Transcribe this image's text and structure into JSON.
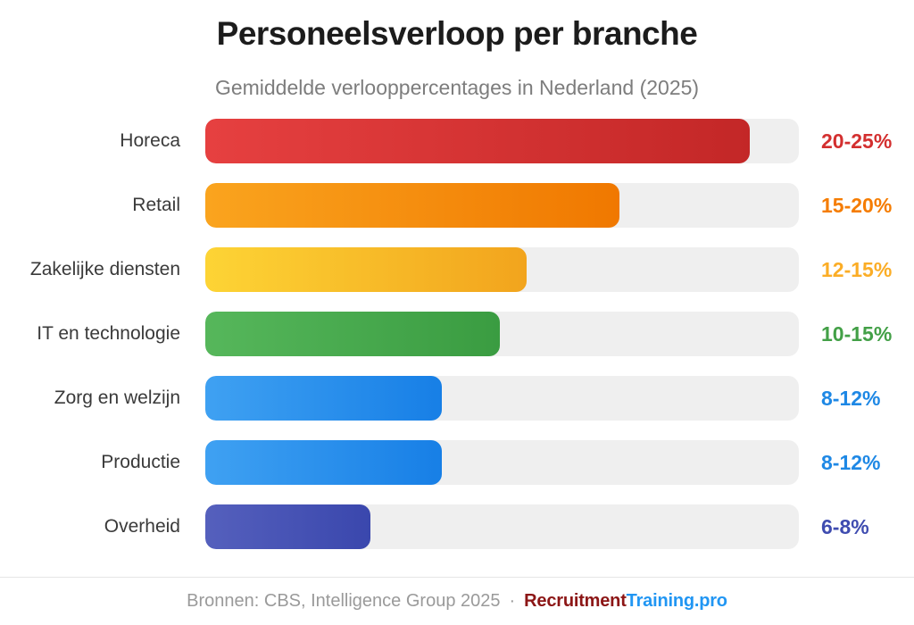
{
  "header": {
    "title": "Personeelsverloop per branche",
    "subtitle": "Gemiddelde verlooppercentages in Nederland (2025)"
  },
  "chart_data": {
    "type": "bar",
    "orientation": "horizontal",
    "title": "Personeelsverloop per branche",
    "subtitle": "Gemiddelde verlooppercentages in Nederland (2025)",
    "grid": false,
    "legend_position": "none",
    "track_color": "#efefef",
    "categories": [
      "Horeca",
      "Retail",
      "Zakelijke diensten",
      "IT en technologie",
      "Zorg en welzijn",
      "Productie",
      "Overheid"
    ],
    "value_labels": [
      "20-25%",
      "15-20%",
      "12-15%",
      "10-15%",
      "8-12%",
      "8-12%",
      "6-8%"
    ],
    "range_low": [
      20,
      15,
      12,
      10,
      8,
      8,
      6
    ],
    "range_high": [
      25,
      20,
      15,
      15,
      12,
      12,
      8
    ],
    "bars": [
      {
        "label": "Horeca",
        "value": "20-25%",
        "width_pct": 91.7,
        "gradient": [
          "#e64040",
          "#c32727"
        ],
        "value_color": "#d32f2f"
      },
      {
        "label": "Retail",
        "value": "15-20%",
        "width_pct": 69.8,
        "gradient": [
          "#faa41e",
          "#f07800"
        ],
        "value_color": "#f57c00"
      },
      {
        "label": "Zakelijke diensten",
        "value": "12-15%",
        "width_pct": 54.1,
        "gradient": [
          "#fdd435",
          "#f2a41d"
        ],
        "value_color": "#fbad26"
      },
      {
        "label": "IT en technologie",
        "value": "10-15%",
        "width_pct": 49.6,
        "gradient": [
          "#56b75b",
          "#3a9c41"
        ],
        "value_color": "#43a047"
      },
      {
        "label": "Zorg en welzijn",
        "value": "8-12%",
        "width_pct": 39.9,
        "gradient": [
          "#3fa1f2",
          "#177fe6"
        ],
        "value_color": "#1e88e5"
      },
      {
        "label": "Productie",
        "value": "8-12%",
        "width_pct": 39.9,
        "gradient": [
          "#3fa1f2",
          "#177fe6"
        ],
        "value_color": "#1e88e5"
      },
      {
        "label": "Overheid",
        "value": "6-8%",
        "width_pct": 27.8,
        "gradient": [
          "#5560bd",
          "#3a47ad"
        ],
        "value_color": "#3f4cb0"
      }
    ]
  },
  "footer": {
    "sources_text": "Bronnen: CBS, Intelligence Group 2025",
    "separator": "·",
    "brand_part1": "Recruitment",
    "brand_part2": "Training.pro",
    "brand_color1": "#8c1616",
    "brand_color2": "#2196f3"
  }
}
